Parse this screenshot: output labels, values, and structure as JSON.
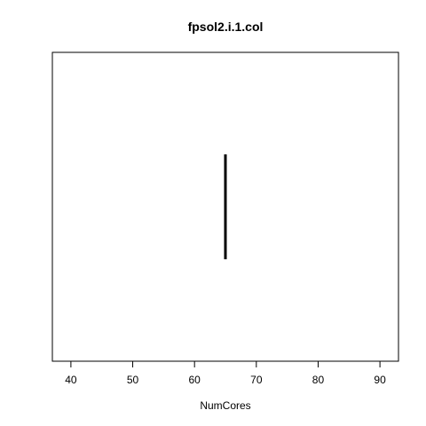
{
  "chart_data": {
    "type": "line",
    "title": "fpsol2.i.1.col",
    "xlabel": "NumCores",
    "ylabel": "",
    "xlim": [
      37,
      93
    ],
    "ylim": [
      0,
      1
    ],
    "x_ticks": [
      40,
      50,
      60,
      70,
      80,
      90
    ],
    "y_ticks": [],
    "grid": false,
    "series": [
      {
        "x": [
          65,
          65
        ],
        "y": [
          0.33,
          0.67
        ],
        "color": "#000000"
      }
    ]
  }
}
